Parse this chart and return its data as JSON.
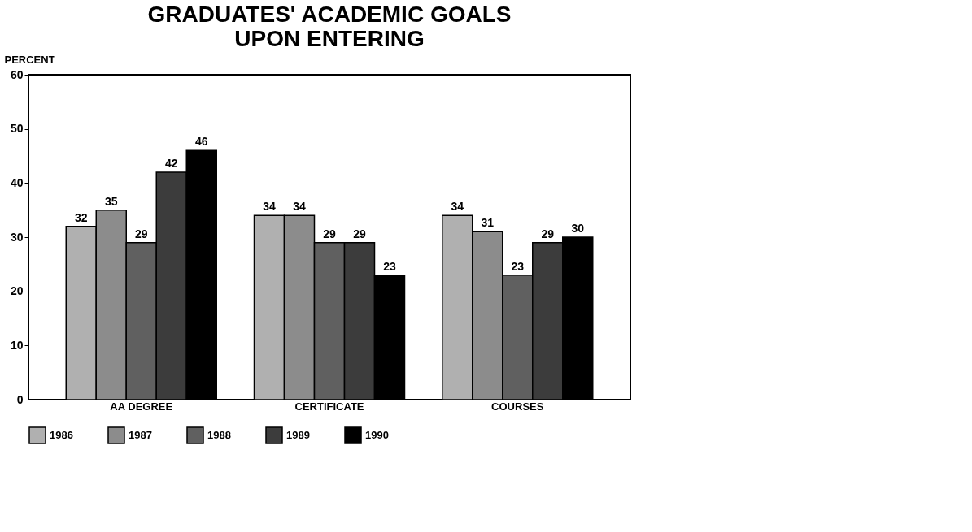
{
  "chart_data": {
    "type": "bar",
    "title": [
      "GRADUATES' ACADEMIC GOALS",
      "UPON ENTERING"
    ],
    "ylabel": "PERCENT",
    "categories": [
      "AA DEGREE",
      "CERTIFICATE",
      "COURSES"
    ],
    "series": [
      {
        "name": "1986",
        "color": "#b0b0b0",
        "values": [
          32,
          34,
          34
        ]
      },
      {
        "name": "1987",
        "color": "#8c8c8c",
        "values": [
          35,
          34,
          31
        ]
      },
      {
        "name": "1988",
        "color": "#606060",
        "values": [
          29,
          29,
          23
        ]
      },
      {
        "name": "1989",
        "color": "#3c3c3c",
        "values": [
          42,
          29,
          29
        ]
      },
      {
        "name": "1990",
        "color": "#000000",
        "values": [
          46,
          23,
          30
        ]
      }
    ],
    "ylim": [
      0,
      60
    ],
    "yticks": [
      0,
      10,
      20,
      30,
      40,
      50,
      60
    ],
    "data_labels": true,
    "legend": "bottom",
    "grid": false
  }
}
